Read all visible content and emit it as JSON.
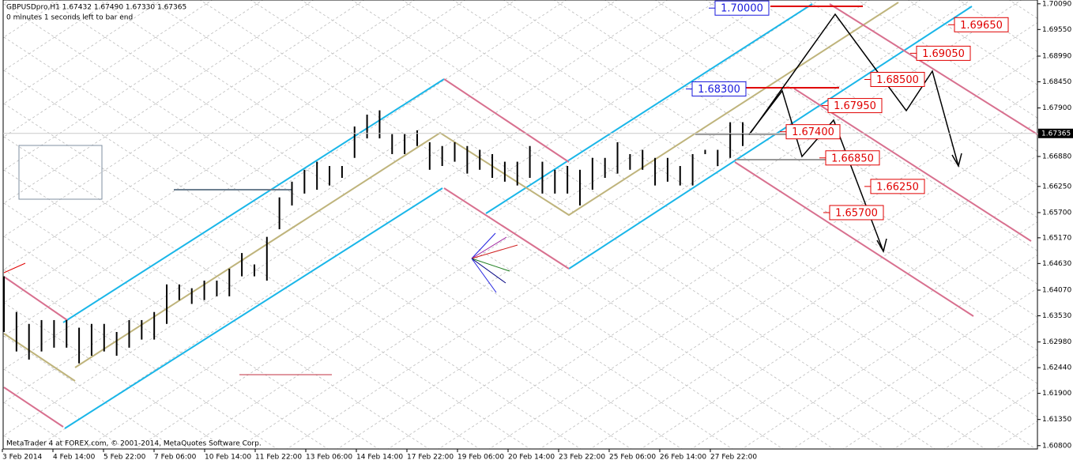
{
  "chart_data": {
    "type": "ohlc",
    "title": "GBPUSDpro,H1  1.67432 1.67490 1.67330 1.67365",
    "subtitle": "0 minutes 1 seconds left to bar end",
    "footer": "MetaTrader 4 at FOREX.com, © 2001-2014, MetaQuotes Software Corp.",
    "color": "#000000",
    "high": [
      1.6436,
      1.6361,
      1.6336,
      1.6344,
      1.6344,
      1.6344,
      1.6328,
      1.6336,
      1.6336,
      1.6319,
      1.6344,
      1.6344,
      1.6361,
      1.6419,
      1.6419,
      1.6411,
      1.6427,
      1.6427,
      1.6452,
      1.6485,
      1.6461,
      1.6519,
      1.6602,
      1.6635,
      1.666,
      1.6677,
      1.6668,
      1.6668,
      1.6751,
      1.6776,
      1.6785,
      1.6735,
      1.6735,
      1.6743,
      1.6718,
      1.671,
      1.6718,
      1.671,
      1.6702,
      1.6693,
      1.6677,
      1.6677,
      1.671,
      1.6677,
      1.666,
      1.6668,
      1.666,
      1.6685,
      1.6685,
      1.6718,
      1.6693,
      1.6702,
      1.6685,
      1.6685,
      1.6668,
      1.6693,
      1.6702,
      1.6702,
      1.676,
      1.676
    ],
    "low": [
      1.6319,
      1.6278,
      1.6261,
      1.6278,
      1.6286,
      1.6286,
      1.6253,
      1.6269,
      1.6278,
      1.6269,
      1.6286,
      1.6303,
      1.6303,
      1.6336,
      1.6386,
      1.6378,
      1.6386,
      1.6394,
      1.6394,
      1.6436,
      1.6436,
      1.6427,
      1.6535,
      1.6585,
      1.661,
      1.6618,
      1.6627,
      1.6643,
      1.6685,
      1.6726,
      1.6726,
      1.6693,
      1.6693,
      1.671,
      1.666,
      1.6668,
      1.6677,
      1.6652,
      1.666,
      1.6643,
      1.6635,
      1.6627,
      1.6643,
      1.661,
      1.661,
      1.661,
      1.6585,
      1.6618,
      1.6643,
      1.6652,
      1.666,
      1.666,
      1.6627,
      1.6635,
      1.6627,
      1.6627,
      1.6693,
      1.6668,
      1.6685,
      1.671
    ],
    "x_labels": [
      "3 Feb 2014",
      "4 Feb 14:00",
      "5 Feb 22:00",
      "7 Feb 06:00",
      "10 Feb 14:00",
      "11 Feb 22:00",
      "13 Feb 06:00",
      "14 Feb 14:00",
      "17 Feb 22:00",
      "19 Feb 06:00",
      "20 Feb 14:00",
      "23 Feb 22:00",
      "25 Feb 06:00",
      "26 Feb 14:00",
      "27 Feb 22:00"
    ],
    "ylim": [
      1.6073,
      1.7017
    ],
    "yticks": [
      {
        "value": 1.7009,
        "label": "1.70090"
      },
      {
        "value": 1.6955,
        "label": "1.69550"
      },
      {
        "value": 1.6899,
        "label": "1.68990"
      },
      {
        "value": 1.6845,
        "label": "1.68450"
      },
      {
        "value": 1.679,
        "label": "1.67900"
      },
      {
        "value": 1.6688,
        "label": "1.66880"
      },
      {
        "value": 1.6625,
        "label": "1.66250"
      },
      {
        "value": 1.657,
        "label": "1.65700"
      },
      {
        "value": 1.6517,
        "label": "1.65170"
      },
      {
        "value": 1.6463,
        "label": "1.64630"
      },
      {
        "value": 1.6407,
        "label": "1.64070"
      },
      {
        "value": 1.6353,
        "label": "1.63530"
      },
      {
        "value": 1.6298,
        "label": "1.62980"
      },
      {
        "value": 1.6244,
        "label": "1.62440"
      },
      {
        "value": 1.619,
        "label": "1.61900"
      },
      {
        "value": 1.6135,
        "label": "1.61350"
      },
      {
        "value": 1.608,
        "label": "1.60800"
      }
    ],
    "current_price": 1.67365,
    "levels": [
      {
        "value": 1.7,
        "label": "1.70000",
        "color": "#1a1adc"
      },
      {
        "value": 1.683,
        "label": "1.68300",
        "color": "#1a1adc"
      },
      {
        "value": 1.6965,
        "label": "1.69650",
        "color": "#e00000"
      },
      {
        "value": 1.6905,
        "label": "1.69050",
        "color": "#e00000"
      },
      {
        "value": 1.685,
        "label": "1.68500",
        "color": "#e00000"
      },
      {
        "value": 1.6795,
        "label": "1.67950",
        "color": "#e00000"
      },
      {
        "value": 1.674,
        "label": "1.67400",
        "color": "#e00000"
      },
      {
        "value": 1.6685,
        "label": "1.66850",
        "color": "#e00000"
      },
      {
        "value": 1.6625,
        "label": "1.66250",
        "color": "#e00000"
      },
      {
        "value": 1.657,
        "label": "1.65700",
        "color": "#e00000"
      }
    ]
  }
}
